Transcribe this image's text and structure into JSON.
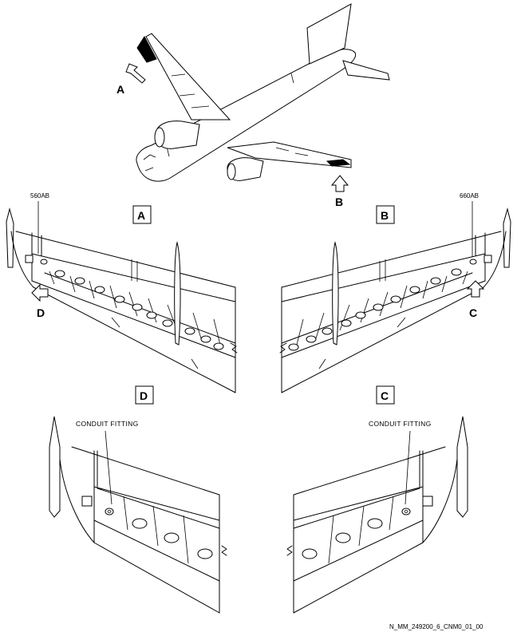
{
  "overview": {
    "callout_a": "A",
    "callout_b": "B"
  },
  "views": {
    "a": {
      "label": "A",
      "panel_ref": "560AB",
      "callout": "D"
    },
    "b": {
      "label": "B",
      "panel_ref": "660AB",
      "callout": "C"
    },
    "c": {
      "label": "C",
      "fitting_label": "CONDUIT FITTING"
    },
    "d": {
      "label": "D",
      "fitting_label": "CONDUIT FITTING"
    }
  },
  "figure_ref": "N_MM_249200_6_CNM0_01_00",
  "icons": [
    "view-arrow-icon",
    "aircraft-illustration"
  ]
}
